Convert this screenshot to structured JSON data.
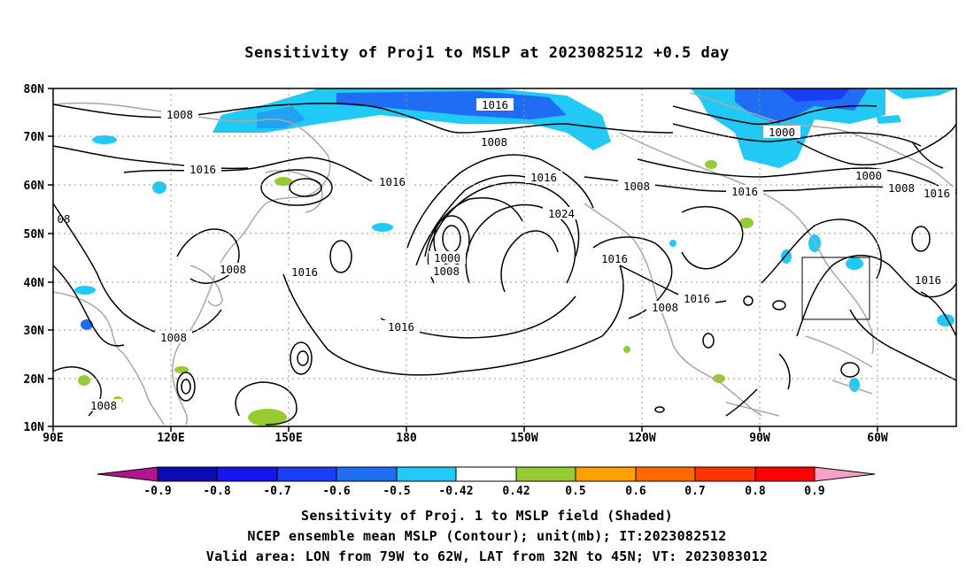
{
  "title": "Sensitivity of Proj1 to MSLP at 2023082512 +0.5 day",
  "lat_labels": [
    "80N",
    "70N",
    "60N",
    "50N",
    "40N",
    "30N",
    "20N",
    "10N"
  ],
  "lon_labels": [
    "90E",
    "120E",
    "150E",
    "180",
    "150W",
    "120W",
    "90W",
    "60W"
  ],
  "contour_labels": [
    "1008",
    "1016",
    "1016",
    "1016",
    "08",
    "1008",
    "1016",
    "1008",
    "1016",
    "1008",
    "1016",
    "1024",
    "1000",
    "1008",
    "1016",
    "1008",
    "1016",
    "1000",
    "1000",
    "1008",
    "1016",
    "1016",
    "1008",
    "1016",
    "1008",
    "1008"
  ],
  "colorbar": {
    "labels": [
      "-0.9",
      "-0.8",
      "-0.7",
      "-0.6",
      "-0.5",
      "-0.42",
      "0.42",
      "0.5",
      "0.6",
      "0.7",
      "0.8",
      "0.9"
    ],
    "colors": [
      "#b0168e",
      "#0b0bb0",
      "#1515ec",
      "#1a3ef6",
      "#1f6cf5",
      "#1fa4f5",
      "#21caf5",
      "#ffffff",
      "#97cb33",
      "#ffa000",
      "#ff6a00",
      "#ff3300",
      "#ff0000",
      "#f7a0c8"
    ]
  },
  "caption": {
    "line1": "Sensitivity of Proj. 1 to MSLP field (Shaded)",
    "line2": "NCEP ensemble mean MSLP (Contour); unit(mb); IT:2023082512",
    "line3": "Valid area: LON from 79W to 62W, LAT from 32N to 45N; VT: 2023083012"
  }
}
